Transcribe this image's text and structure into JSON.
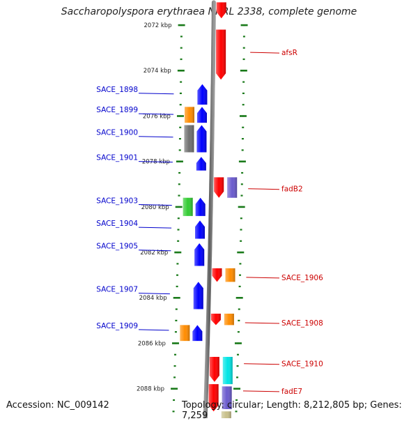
{
  "title": "Saccharopolyspora erythraea NRRL 2338, complete genome",
  "footer": {
    "accession": "Accession: NC_009142",
    "topology": "Topology: circular; Length: 8,212,805 bp; Genes: 7,259"
  },
  "colors": {
    "reverse_label": "#0000cc",
    "forward_label": "#cc0000",
    "tick": "#1a7a1a",
    "backbone": "#777777"
  },
  "scale": {
    "unit": "kbp",
    "ticks": [
      {
        "kbp": 2072,
        "label": "2072 kbp"
      },
      {
        "kbp": 2074,
        "label": "2074 kbp"
      },
      {
        "kbp": 2076,
        "label": "2076 kbp"
      },
      {
        "kbp": 2078,
        "label": "2078 kbp"
      },
      {
        "kbp": 2080,
        "label": "2080 kbp"
      },
      {
        "kbp": 2082,
        "label": "2082 kbp"
      },
      {
        "kbp": 2084,
        "label": "2084 kbp"
      },
      {
        "kbp": 2086,
        "label": "2086 kbp"
      },
      {
        "kbp": 2088,
        "label": "2088 kbp"
      }
    ]
  },
  "labels": {
    "reverse": [
      {
        "name": "SACE_1898",
        "kbp": 2075.0
      },
      {
        "name": "SACE_1899",
        "kbp": 2075.9
      },
      {
        "name": "SACE_1900",
        "kbp": 2076.9
      },
      {
        "name": "SACE_1901",
        "kbp": 2078.0
      },
      {
        "name": "SACE_1903",
        "kbp": 2079.9
      },
      {
        "name": "SACE_1904",
        "kbp": 2080.9
      },
      {
        "name": "SACE_1905",
        "kbp": 2081.9
      },
      {
        "name": "SACE_1907",
        "kbp": 2083.8
      },
      {
        "name": "SACE_1909",
        "kbp": 2085.4
      }
    ],
    "forward": [
      {
        "name": "afsR",
        "kbp": 2073.2
      },
      {
        "name": "fadB2",
        "kbp": 2079.2
      },
      {
        "name": "SACE_1906",
        "kbp": 2083.1
      },
      {
        "name": "SACE_1908",
        "kbp": 2085.1
      },
      {
        "name": "SACE_1910",
        "kbp": 2086.9
      },
      {
        "name": "fadE7",
        "kbp": 2088.1
      }
    ]
  },
  "features": {
    "reverse": [
      {
        "track": 1,
        "color": "#0000ff",
        "start": 2074.6,
        "end": 2075.5
      },
      {
        "track": 1,
        "color": "#0000ff",
        "start": 2075.6,
        "end": 2076.3
      },
      {
        "track": 1,
        "color": "#0000ff",
        "start": 2076.4,
        "end": 2077.6
      },
      {
        "track": 1,
        "color": "#0000ff",
        "start": 2077.8,
        "end": 2078.4
      },
      {
        "track": 1,
        "color": "#0000ff",
        "start": 2079.6,
        "end": 2080.4
      },
      {
        "track": 1,
        "color": "#0000ff",
        "start": 2080.6,
        "end": 2081.4
      },
      {
        "track": 1,
        "color": "#0000ff",
        "start": 2081.6,
        "end": 2082.6
      },
      {
        "track": 1,
        "color": "#0000ff",
        "start": 2083.3,
        "end": 2084.5
      },
      {
        "track": 1,
        "color": "#0000ff",
        "start": 2085.2,
        "end": 2085.9
      },
      {
        "track": 2,
        "color": "#ff8c00",
        "start": 2075.6,
        "end": 2076.3
      },
      {
        "track": 2,
        "color": "#707070",
        "start": 2076.4,
        "end": 2077.6
      },
      {
        "track": 2,
        "color": "#33cc33",
        "start": 2079.6,
        "end": 2080.4
      },
      {
        "track": 2,
        "color": "#ff8c00",
        "start": 2085.2,
        "end": 2085.9
      }
    ],
    "forward": [
      {
        "track": 1,
        "color": "#ff0000",
        "start": 2071.0,
        "end": 2071.7
      },
      {
        "track": 1,
        "color": "#ff0000",
        "start": 2072.2,
        "end": 2074.4
      },
      {
        "track": 1,
        "color": "#ff0000",
        "start": 2078.7,
        "end": 2079.6
      },
      {
        "track": 1,
        "color": "#ff0000",
        "start": 2082.7,
        "end": 2083.3
      },
      {
        "track": 1,
        "color": "#ff0000",
        "start": 2084.7,
        "end": 2085.2
      },
      {
        "track": 1,
        "color": "#ff0000",
        "start": 2086.6,
        "end": 2087.7
      },
      {
        "track": 1,
        "color": "#ff0000",
        "start": 2087.8,
        "end": 2089.0
      },
      {
        "track": 2,
        "color": "#6a5acd",
        "start": 2078.7,
        "end": 2079.6
      },
      {
        "track": 2,
        "color": "#ff8c00",
        "start": 2082.7,
        "end": 2083.3
      },
      {
        "track": 2,
        "color": "#ff8c00",
        "start": 2084.7,
        "end": 2085.2
      },
      {
        "track": 2,
        "color": "#00e5e5",
        "start": 2086.6,
        "end": 2087.8
      },
      {
        "track": 2,
        "color": "#6a5acd",
        "start": 2087.9,
        "end": 2088.9
      },
      {
        "track": 2,
        "color": "#c8c08a",
        "start": 2089.0,
        "end": 2089.4
      }
    ]
  }
}
